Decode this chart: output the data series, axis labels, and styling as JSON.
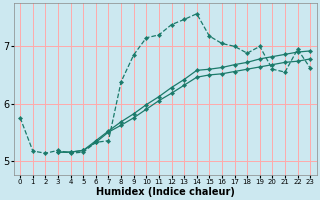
{
  "xlabel": "Humidex (Indice chaleur)",
  "bg_color": "#cce8f0",
  "grid_color": "#ffaaaa",
  "line_color": "#1a7a6a",
  "xlim": [
    -0.5,
    23.5
  ],
  "ylim": [
    4.75,
    7.75
  ],
  "yticks": [
    5,
    6,
    7
  ],
  "xticks": [
    0,
    1,
    2,
    3,
    4,
    5,
    6,
    7,
    8,
    9,
    10,
    11,
    12,
    13,
    14,
    15,
    16,
    17,
    18,
    19,
    20,
    21,
    22,
    23
  ],
  "line1_x": [
    0,
    1,
    2,
    3,
    4,
    5,
    6,
    7,
    8,
    9,
    10,
    11,
    12,
    13,
    14,
    15,
    16,
    17,
    18,
    19,
    20,
    21,
    22,
    23
  ],
  "line1_y": [
    5.75,
    5.17,
    5.13,
    5.18,
    5.13,
    5.15,
    5.32,
    5.35,
    6.38,
    6.85,
    7.15,
    7.2,
    7.38,
    7.47,
    7.57,
    7.18,
    7.05,
    7.0,
    6.88,
    7.0,
    6.6,
    6.55,
    6.95,
    6.62
  ],
  "line2_x": [
    3,
    4,
    5,
    6,
    7,
    8,
    9,
    10,
    11,
    12,
    13,
    14,
    15,
    16,
    17,
    18,
    19,
    20,
    21,
    22,
    23
  ],
  "line2_y": [
    5.15,
    5.15,
    5.18,
    5.35,
    5.52,
    5.68,
    5.82,
    5.98,
    6.12,
    6.28,
    6.42,
    6.58,
    6.6,
    6.63,
    6.68,
    6.72,
    6.78,
    6.82,
    6.86,
    6.9,
    6.92
  ],
  "line3_x": [
    3,
    4,
    5,
    6,
    7,
    8,
    9,
    10,
    11,
    12,
    13,
    14,
    15,
    16,
    17,
    18,
    19,
    20,
    21,
    22,
    23
  ],
  "line3_y": [
    5.15,
    5.15,
    5.18,
    5.32,
    5.5,
    5.62,
    5.75,
    5.9,
    6.05,
    6.18,
    6.32,
    6.46,
    6.5,
    6.52,
    6.56,
    6.6,
    6.64,
    6.68,
    6.72,
    6.74,
    6.78
  ]
}
